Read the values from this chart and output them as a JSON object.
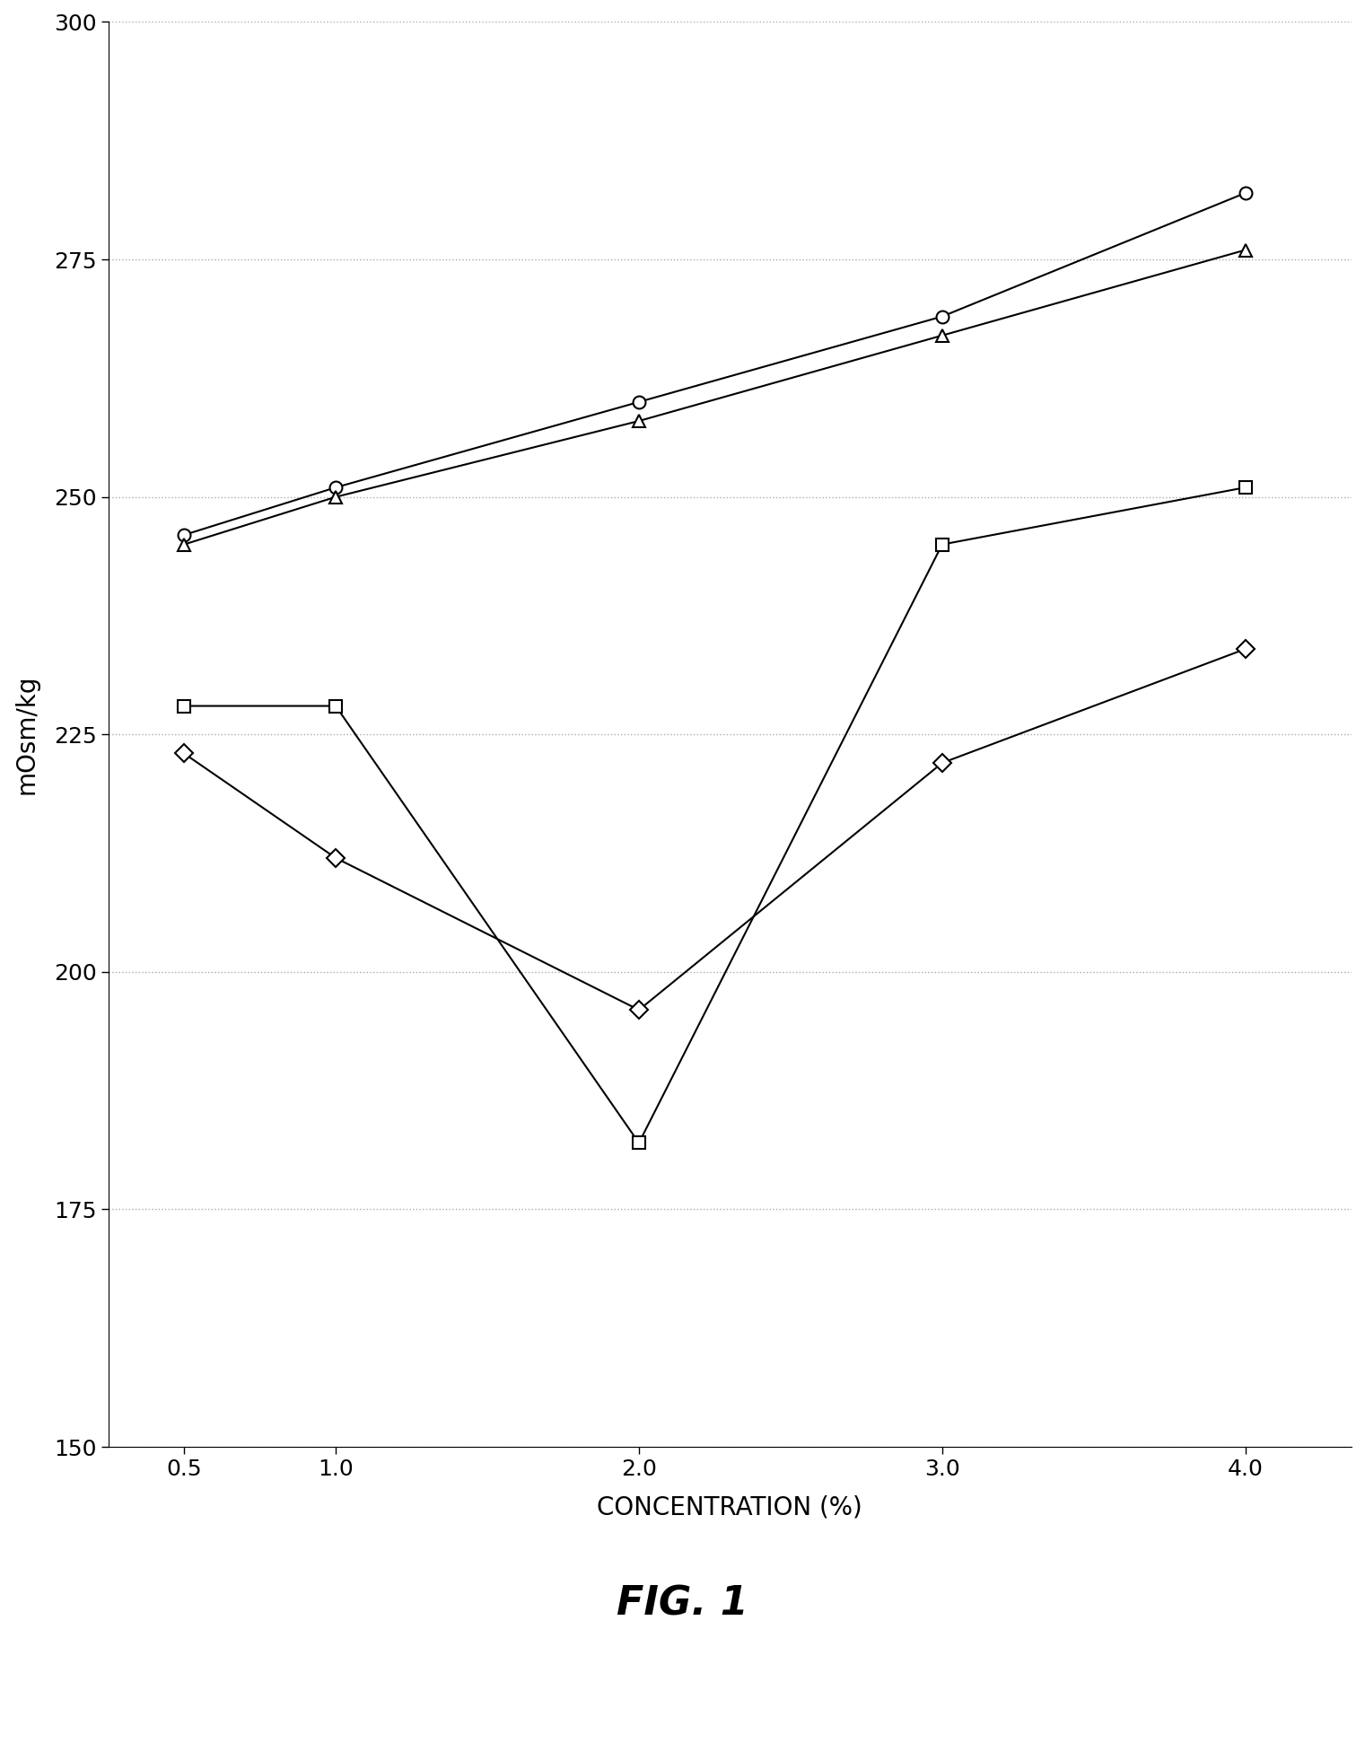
{
  "title": "FIG. 1",
  "xlabel": "CONCENTRATION (%)",
  "ylabel": "mOsm/kg",
  "x": [
    0.5,
    1.0,
    2.0,
    3.0,
    4.0
  ],
  "series_circle": [
    246,
    251,
    260,
    269,
    282
  ],
  "series_triangle": [
    245,
    250,
    258,
    267,
    276
  ],
  "series_square": [
    228,
    228,
    182,
    245,
    251
  ],
  "series_diamond": [
    223,
    212,
    196,
    222,
    234
  ],
  "ylim": [
    150,
    300
  ],
  "yticks": [
    150,
    175,
    200,
    225,
    250,
    275,
    300
  ],
  "xticks": [
    0.5,
    1.0,
    2.0,
    3.0,
    4.0
  ],
  "xtick_labels": [
    "0.5",
    "1.0",
    "2.0",
    "3.0",
    "4.0"
  ],
  "line_color": "#000000",
  "background_color": "#ffffff",
  "grid_color": "#aaaaaa",
  "marker_size": 10,
  "line_width": 1.5,
  "title_fontsize": 32,
  "axis_label_fontsize": 20,
  "tick_fontsize": 18
}
